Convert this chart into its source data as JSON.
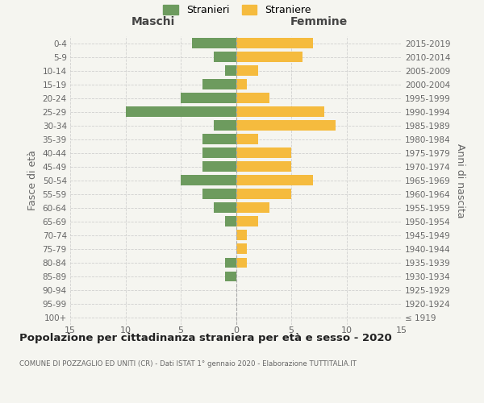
{
  "age_groups": [
    "100+",
    "95-99",
    "90-94",
    "85-89",
    "80-84",
    "75-79",
    "70-74",
    "65-69",
    "60-64",
    "55-59",
    "50-54",
    "45-49",
    "40-44",
    "35-39",
    "30-34",
    "25-29",
    "20-24",
    "15-19",
    "10-14",
    "5-9",
    "0-4"
  ],
  "birth_years": [
    "≤ 1919",
    "1920-1924",
    "1925-1929",
    "1930-1934",
    "1935-1939",
    "1940-1944",
    "1945-1949",
    "1950-1954",
    "1955-1959",
    "1960-1964",
    "1965-1969",
    "1970-1974",
    "1975-1979",
    "1980-1984",
    "1985-1989",
    "1990-1994",
    "1995-1999",
    "2000-2004",
    "2005-2009",
    "2010-2014",
    "2015-2019"
  ],
  "maschi": [
    0,
    0,
    0,
    1,
    1,
    0,
    0,
    1,
    2,
    3,
    5,
    3,
    3,
    3,
    2,
    10,
    5,
    3,
    1,
    2,
    4
  ],
  "femmine": [
    0,
    0,
    0,
    0,
    1,
    1,
    1,
    2,
    3,
    5,
    7,
    5,
    5,
    2,
    9,
    8,
    3,
    1,
    2,
    6,
    7
  ],
  "color_maschi": "#6d9b5e",
  "color_femmine": "#f5bb3e",
  "title": "Popolazione per cittadinanza straniera per età e sesso - 2020",
  "subtitle": "COMUNE DI POZZAGLIO ED UNITI (CR) - Dati ISTAT 1° gennaio 2020 - Elaborazione TUTTITALIA.IT",
  "ylabel_left": "Fasce di età",
  "ylabel_right": "Anni di nascita",
  "xlabel_left": "Maschi",
  "xlabel_right": "Femmine",
  "legend_maschi": "Stranieri",
  "legend_femmine": "Straniere",
  "xlim": 15,
  "background_color": "#f5f5f0",
  "grid_color": "#cccccc"
}
